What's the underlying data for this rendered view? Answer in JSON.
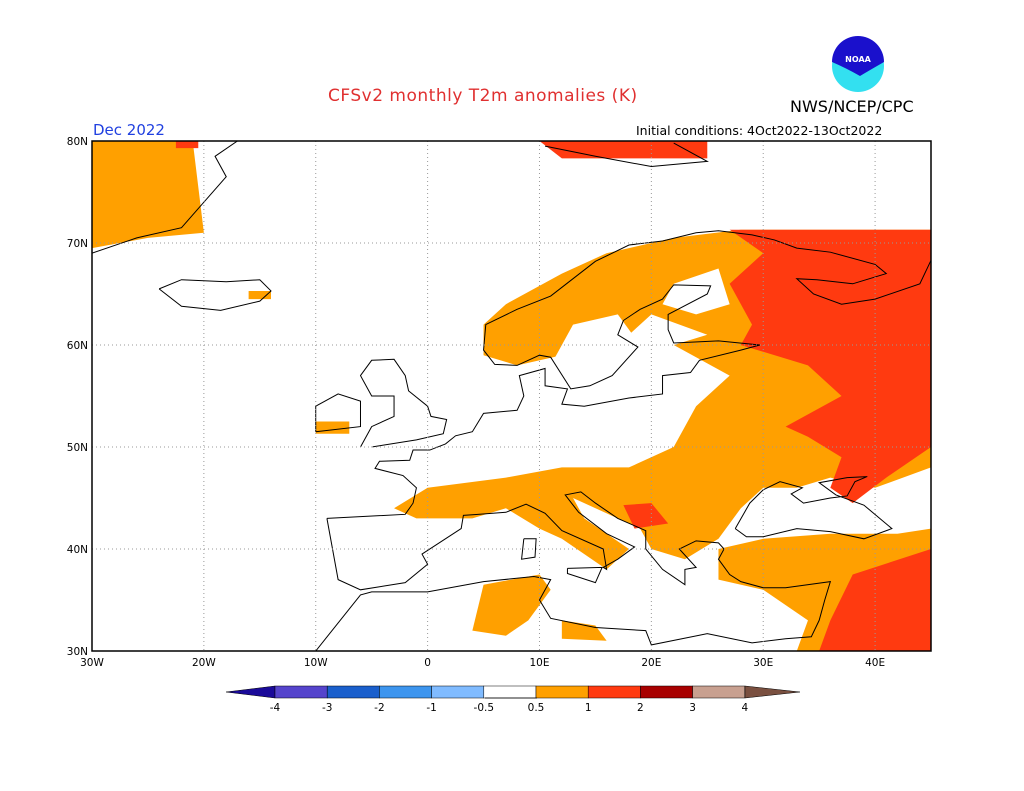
{
  "title": "CFSv2 monthly T2m anomalies (K)",
  "organization": "NWS/NCEP/CPC",
  "logo_text": "NOAA",
  "valid_month": "Dec 2022",
  "initial_conditions": "Initial conditions: 4Oct2022-13Oct2022",
  "lat_labels": [
    "80N",
    "70N",
    "60N",
    "50N",
    "40N",
    "30N"
  ],
  "lon_labels": [
    "30W",
    "20W",
    "10W",
    "0",
    "10E",
    "20E",
    "30E",
    "40E"
  ],
  "colorbar": {
    "labels": [
      "-4",
      "-3",
      "-2",
      "-1",
      "-0.5",
      "0.5",
      "1",
      "2",
      "3",
      "4"
    ],
    "colors": [
      "#1a0a99",
      "#5544cc",
      "#1a5fcc",
      "#3d95ee",
      "#80bbff",
      "#ffffff",
      "#ffa000",
      "#ff3a10",
      "#a80000",
      "#c8a090",
      "#7a5040"
    ]
  },
  "colors": {
    "gt_0_5": "#ffa000",
    "gt_1": "#ff3a10",
    "land_outline": "#000000"
  }
}
